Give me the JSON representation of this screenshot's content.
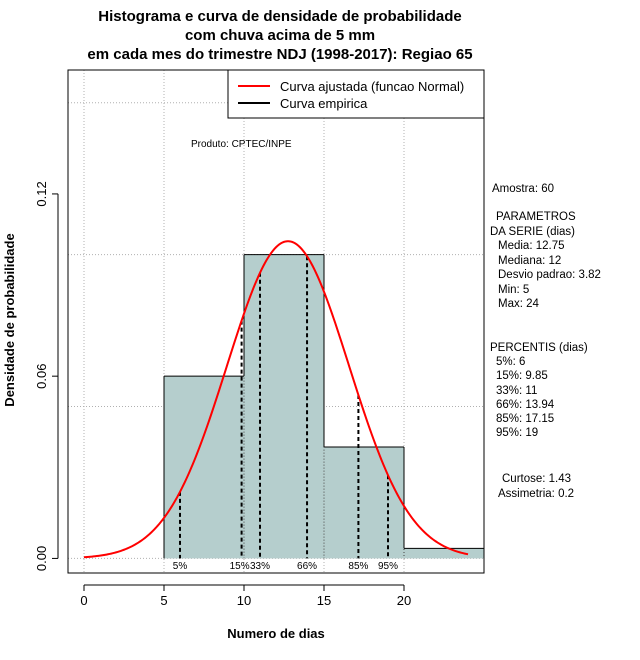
{
  "chart_data": {
    "type": "histogram",
    "title_lines": [
      "Histograma e curva de densidade de probabilidade",
      "com chuva acima de 5 mm",
      "em cada mes do trimestre NDJ (1998-2017): Regiao 65"
    ],
    "xlabel": "Numero de dias",
    "ylabel": "Densidade de probabilidade",
    "xlim": [
      -1,
      25
    ],
    "ylim": [
      -0.0048,
      0.1608
    ],
    "x_ticks": [
      "0",
      "5",
      "10",
      "15",
      "20"
    ],
    "y_ticks": [
      "0.00",
      "0.06",
      "0.12"
    ],
    "bins": [
      {
        "from": 5,
        "to": 10,
        "density": 0.06
      },
      {
        "from": 10,
        "to": 15,
        "density": 0.1
      },
      {
        "from": 15,
        "to": 20,
        "density": 0.0367
      },
      {
        "from": 20,
        "to": 25,
        "density": 0.0033
      }
    ],
    "normal_fit": {
      "mean": 12.75,
      "sd": 3.82,
      "from": 0,
      "to": 24
    },
    "percentile_markers": [
      {
        "label": "5%",
        "x": 6
      },
      {
        "label": "15%",
        "x": 9.85
      },
      {
        "label": "33%",
        "x": 11
      },
      {
        "label": "66%",
        "x": 13.94
      },
      {
        "label": "85%",
        "x": 17.15
      },
      {
        "label": "95%",
        "x": 19
      }
    ],
    "legend": [
      {
        "label": "Curva ajustada (funcao Normal)",
        "color": "#ff0000"
      },
      {
        "label": "Curva empirica",
        "color": "#000000"
      }
    ],
    "product_note": "Produto: CPTEC/INPE",
    "colors": {
      "bar_fill": "#b5cecd",
      "curve": "#ff0000",
      "grid": "#b0b0b0"
    }
  },
  "stats": {
    "sample": "Amostra: 60",
    "params_title_1": "PARAMETROS",
    "params_title_2": "DA SERIE (dias)",
    "media": "Media: 12.75",
    "mediana": "Mediana: 12",
    "desvio": "Desvio padrao: 3.82",
    "min": "Min: 5",
    "max": "Max: 24",
    "percentis_title": "PERCENTIS (dias)",
    "p5": "5%: 6",
    "p15": "15%: 9.85",
    "p33": "33%: 11",
    "p66": "66%: 13.94",
    "p85": "85%: 17.15",
    "p95": "95%: 19",
    "curtose": "Curtose: 1.43",
    "assimetria": "Assimetria: 0.2"
  }
}
